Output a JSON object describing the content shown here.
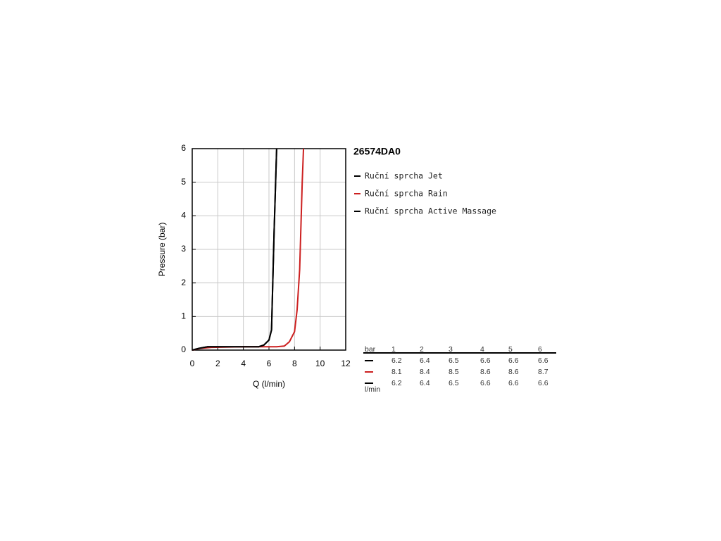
{
  "chart_data": {
    "type": "line",
    "title": "26574DA0",
    "xlabel": "Q (l/min)",
    "ylabel": "Pressure (bar)",
    "xlim": [
      0,
      12
    ],
    "xticks": [
      0,
      2,
      4,
      6,
      8,
      10,
      12
    ],
    "ylim": [
      0,
      6
    ],
    "yticks": [
      0,
      1,
      2,
      3,
      4,
      5,
      6
    ],
    "grid": true,
    "series": [
      {
        "name": "Ruční sprcha Jet",
        "color": "#000000",
        "x": [
          0,
          0.5,
          1.2,
          3,
          5.2,
          5.6,
          6,
          6.2,
          6.4,
          6.6
        ],
        "values": [
          0,
          0.05,
          0.1,
          0.1,
          0.1,
          0.15,
          0.3,
          0.6,
          3.5,
          6
        ]
      },
      {
        "name": "Ruční sprcha Rain",
        "color": "#cc1f1f",
        "x": [
          0,
          0.6,
          1.5,
          4,
          6.6,
          7.2,
          7.6,
          8,
          8.2,
          8.4,
          8.6,
          8.7
        ],
        "values": [
          0,
          0.05,
          0.08,
          0.1,
          0.1,
          0.12,
          0.25,
          0.55,
          1.2,
          2.4,
          5,
          6
        ]
      },
      {
        "name": "Ruční sprcha Active Massage",
        "color": "#000000",
        "x": [
          0,
          0.5,
          1.2,
          3,
          5.2,
          5.6,
          6,
          6.2,
          6.4,
          6.6
        ],
        "values": [
          0,
          0.05,
          0.1,
          0.1,
          0.1,
          0.15,
          0.3,
          0.6,
          3.5,
          6
        ]
      }
    ]
  },
  "table": {
    "header": [
      "bar",
      1,
      2,
      3,
      4,
      5,
      6
    ],
    "rows": [
      [
        6.2,
        6.4,
        6.5,
        6.6,
        6.6,
        6.6
      ],
      [
        8.1,
        8.4,
        8.5,
        8.6,
        8.6,
        8.7
      ],
      [
        6.2,
        6.4,
        6.5,
        6.6,
        6.6,
        6.6
      ]
    ],
    "unit": "l/min"
  }
}
